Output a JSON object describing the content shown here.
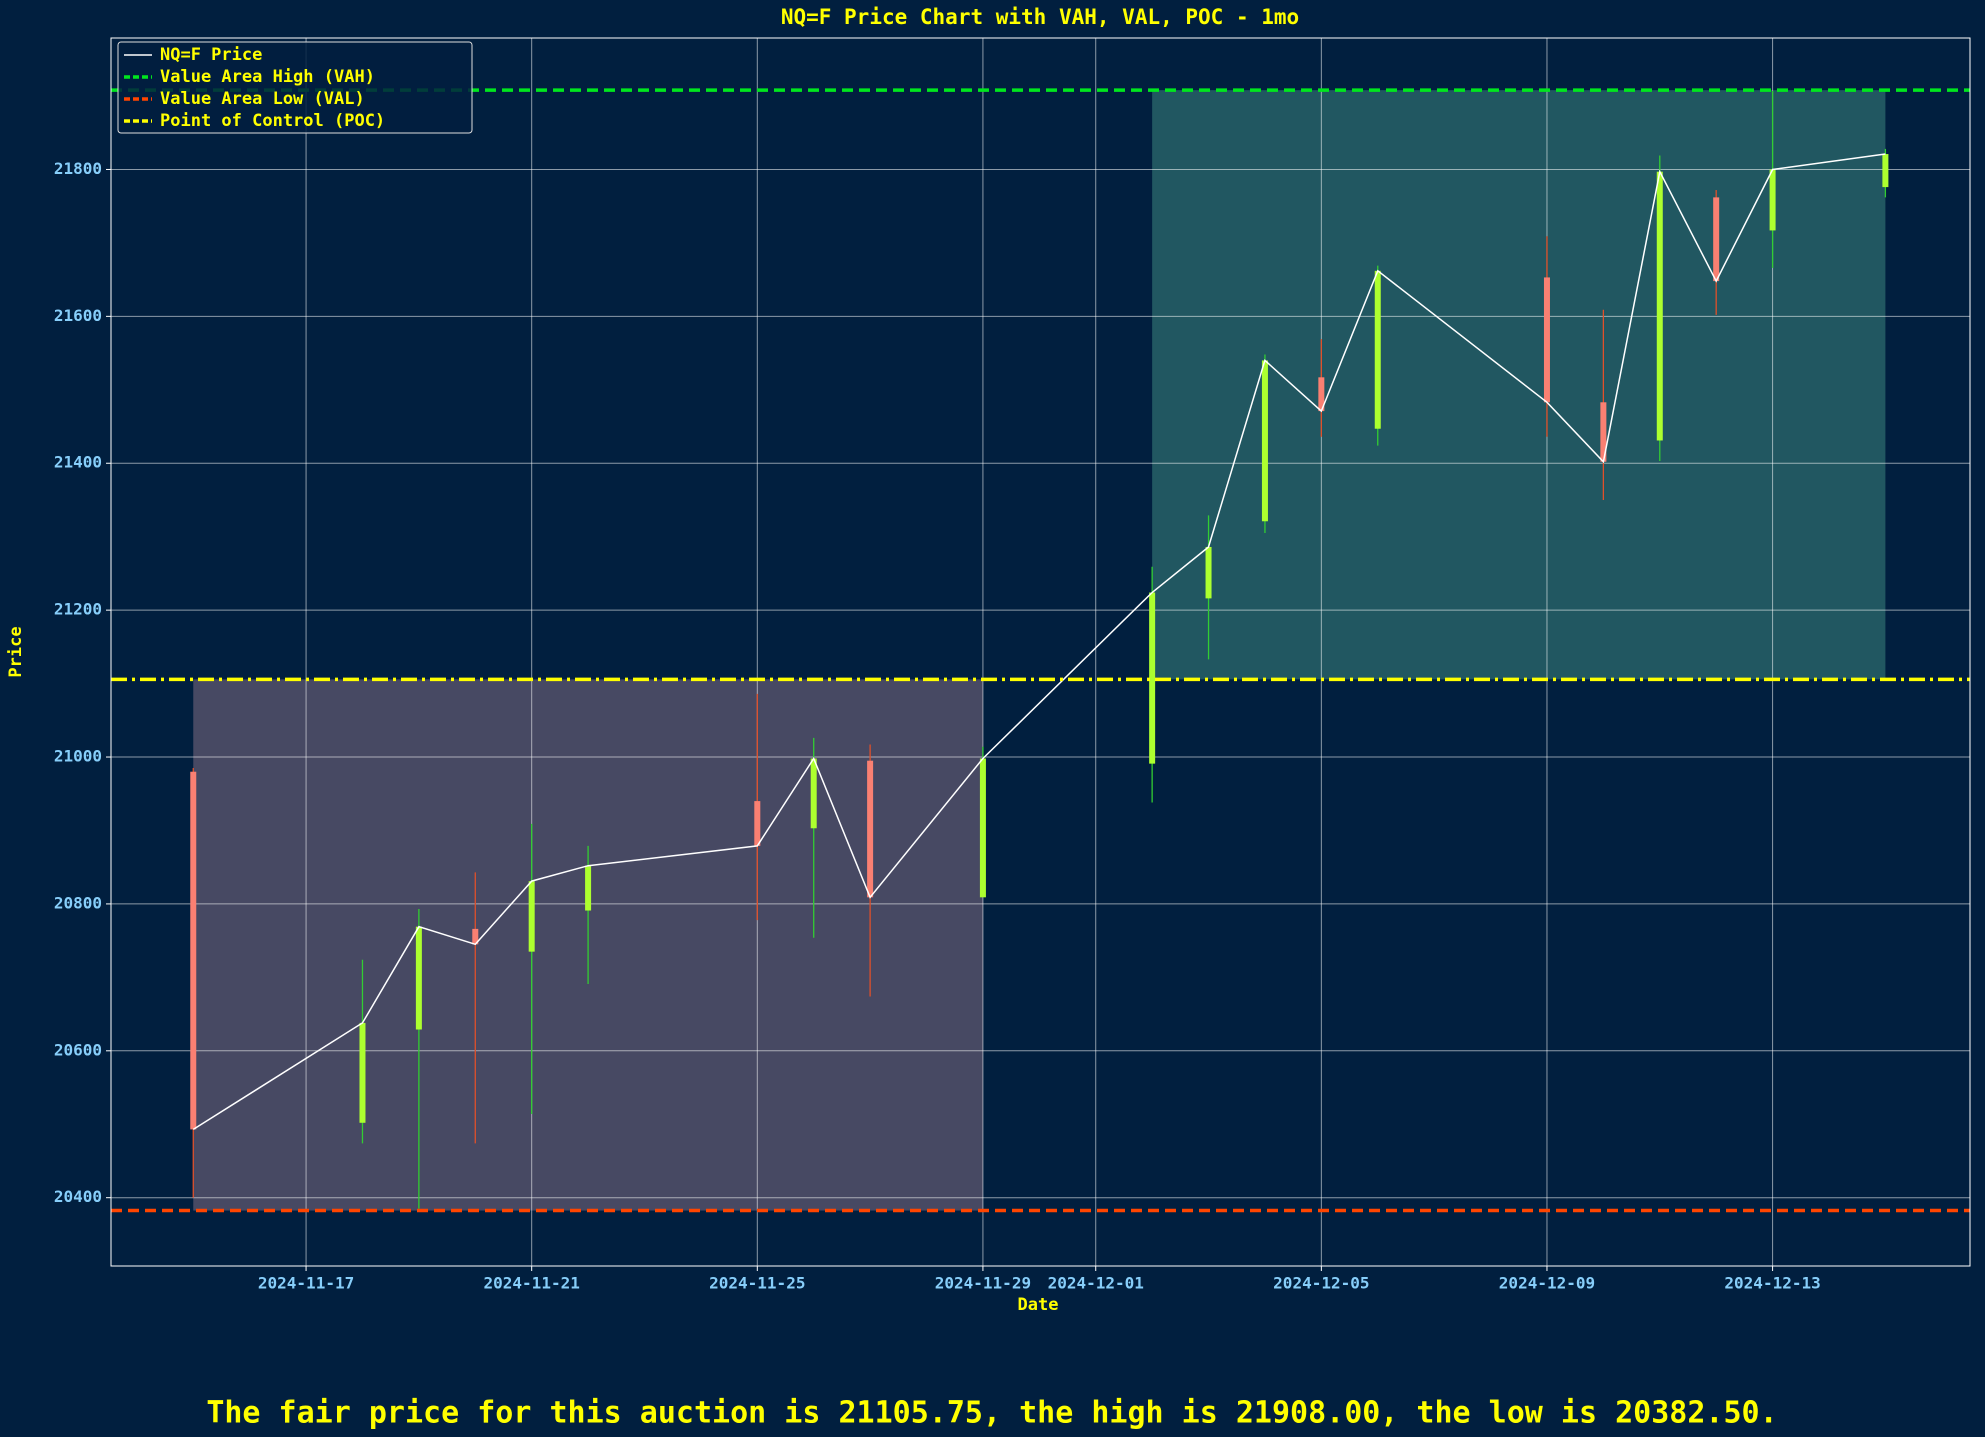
{
  "chart_data": {
    "type": "candlestick",
    "title": "NQ=F Price Chart with VAH, VAL, POC - 1mo",
    "x_label": "Date",
    "y_label": "Price",
    "x": [
      "2024-11-15",
      "2024-11-18",
      "2024-11-19",
      "2024-11-20",
      "2024-11-21",
      "2024-11-22",
      "2024-11-25",
      "2024-11-26",
      "2024-11-27",
      "2024-11-29",
      "2024-12-02",
      "2024-12-03",
      "2024-12-04",
      "2024-12-05",
      "2024-12-06",
      "2024-12-09",
      "2024-12-10",
      "2024-12-11",
      "2024-12-12",
      "2024-12-13",
      "2024-12-15"
    ],
    "open": [
      20980,
      20502,
      20629,
      20766,
      20735,
      20791,
      20940,
      20903,
      20995,
      20809,
      20991,
      21216,
      21321,
      21517,
      21447,
      21653,
      21483,
      21431,
      21762,
      21717,
      21776
    ],
    "high": [
      20985,
      20724,
      20793,
      20843,
      20909,
      20879,
      21086,
      21026,
      21017,
      21014,
      21259,
      21329,
      21548,
      21569,
      21669,
      21709,
      21609,
      21819,
      21772,
      21907,
      21828
    ],
    "low": [
      20400,
      20474,
      20385,
      20474,
      20514,
      20691,
      20778,
      20754,
      20674,
      20809,
      20938,
      21133,
      21305,
      21436,
      21424,
      21436,
      21350,
      21403,
      21602,
      21666,
      21762
    ],
    "close": [
      20493,
      20638,
      20769,
      20745,
      20831,
      20852,
      20879,
      20998,
      20809,
      20998,
      21224,
      21286,
      21540,
      21471,
      21662,
      21483,
      21402,
      21797,
      21648,
      21800,
      21821
    ],
    "price_line": {
      "name": "NQ=F Price",
      "color": "#ffffff"
    },
    "up_color": "#adff2f",
    "down_color": "#fa8072",
    "up_wick_color": "#32cd32",
    "down_wick_color": "#e0502a",
    "reference_lines": [
      {
        "name": "Value Area High (VAH)",
        "value": 21908,
        "color": "#00e61e",
        "style": "dashed"
      },
      {
        "name": "Value Area Low (VAL)",
        "value": 20382.5,
        "color": "#ff4500",
        "style": "dashed"
      },
      {
        "name": "Point of Control (POC)",
        "value": 21105.75,
        "color": "#ffff00",
        "style": "dashdot"
      }
    ],
    "zone_colors": {
      "low": "rgba(255,182,193,0.28)",
      "high": "rgba(102,205,170,0.32)"
    },
    "xlim": [
      "2024-11-13T13:00:00Z",
      "2024-12-16T12:00:00Z"
    ],
    "xticks": [
      "2024-11-17",
      "2024-11-21",
      "2024-11-25",
      "2024-11-29",
      "2024-12-01",
      "2024-12-05",
      "2024-12-09",
      "2024-12-13"
    ],
    "ylim": [
      20307,
      21979
    ],
    "yticks": [
      20400,
      20600,
      20800,
      21000,
      21200,
      21400,
      21600,
      21800
    ],
    "grid": true,
    "legend": "upper-left",
    "footer": "The fair price for this auction is 21105.75, the high is 21908.00, the low is 20382.50."
  }
}
